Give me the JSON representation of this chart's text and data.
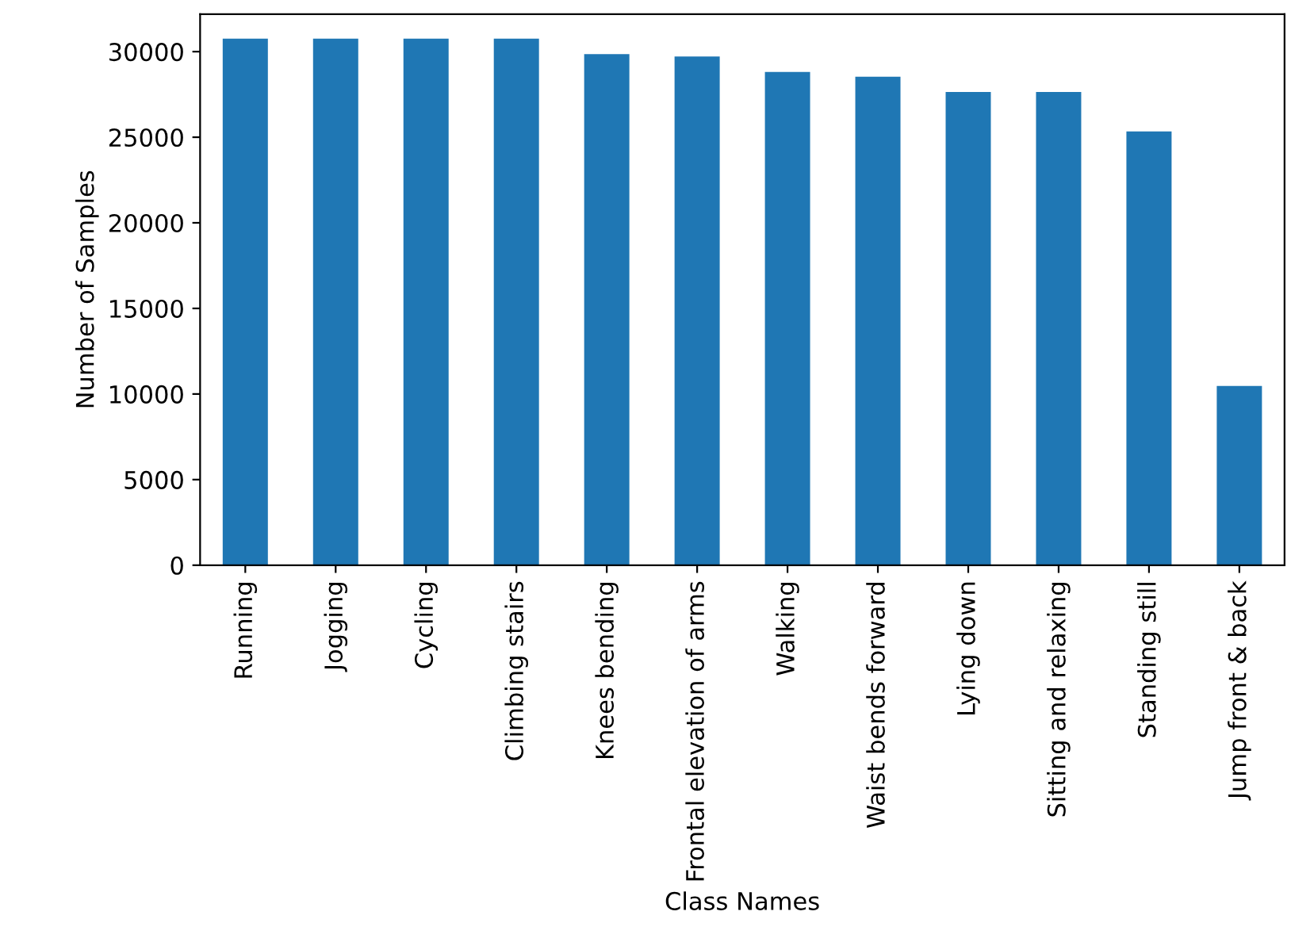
{
  "chart_data": {
    "type": "bar",
    "xlabel": "Class Names",
    "ylabel": "Number of Samples",
    "categories": [
      "Running",
      "Jogging",
      "Cycling",
      "Climbing stairs",
      "Knees bending",
      "Frontal elevation of arms",
      "Walking",
      "Waist bends forward",
      "Lying down",
      "Sitting and relaxing",
      "Standing still",
      "Jump front & back"
    ],
    "values": [
      30760,
      30760,
      30760,
      30760,
      29850,
      29710,
      28810,
      28530,
      27640,
      27640,
      25340,
      10470
    ],
    "color": "#1f77b4",
    "ylim": [
      0,
      32190
    ],
    "yticks": [
      0,
      5000,
      10000,
      15000,
      20000,
      25000,
      30000
    ],
    "grid": false
  }
}
